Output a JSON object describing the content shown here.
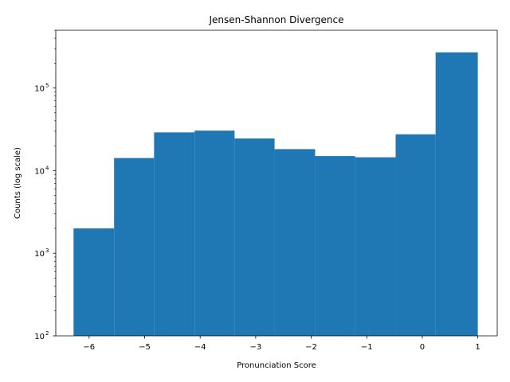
{
  "chart_data": {
    "type": "bar",
    "title": "Jensen-Shannon Divergence",
    "xlabel": "Pronunciation Score",
    "ylabel": "Counts (log scale)",
    "y_scale": "log",
    "xlim": [
      -6.6,
      1.35
    ],
    "ylim": [
      100,
      500000
    ],
    "bar_color": "#1f77b4",
    "bin_edges": [
      -6.28,
      -5.55,
      -4.83,
      -4.1,
      -3.38,
      -2.66,
      -1.93,
      -1.21,
      -0.48,
      0.24,
      1.0
    ],
    "values": [
      2000,
      14200,
      29000,
      30500,
      24500,
      18200,
      15000,
      14500,
      27500,
      270000
    ],
    "x_ticks": [
      -6,
      -5,
      -4,
      -3,
      -2,
      -1,
      0,
      1
    ],
    "x_tick_labels": [
      "−6",
      "−5",
      "−4",
      "−3",
      "−2",
      "−1",
      "0",
      "1"
    ],
    "y_ticks": [
      100,
      1000,
      10000,
      100000
    ],
    "y_tick_labels": [
      "10",
      "10",
      "10",
      "10"
    ],
    "y_tick_exponents": [
      "2",
      "3",
      "4",
      "5"
    ]
  }
}
